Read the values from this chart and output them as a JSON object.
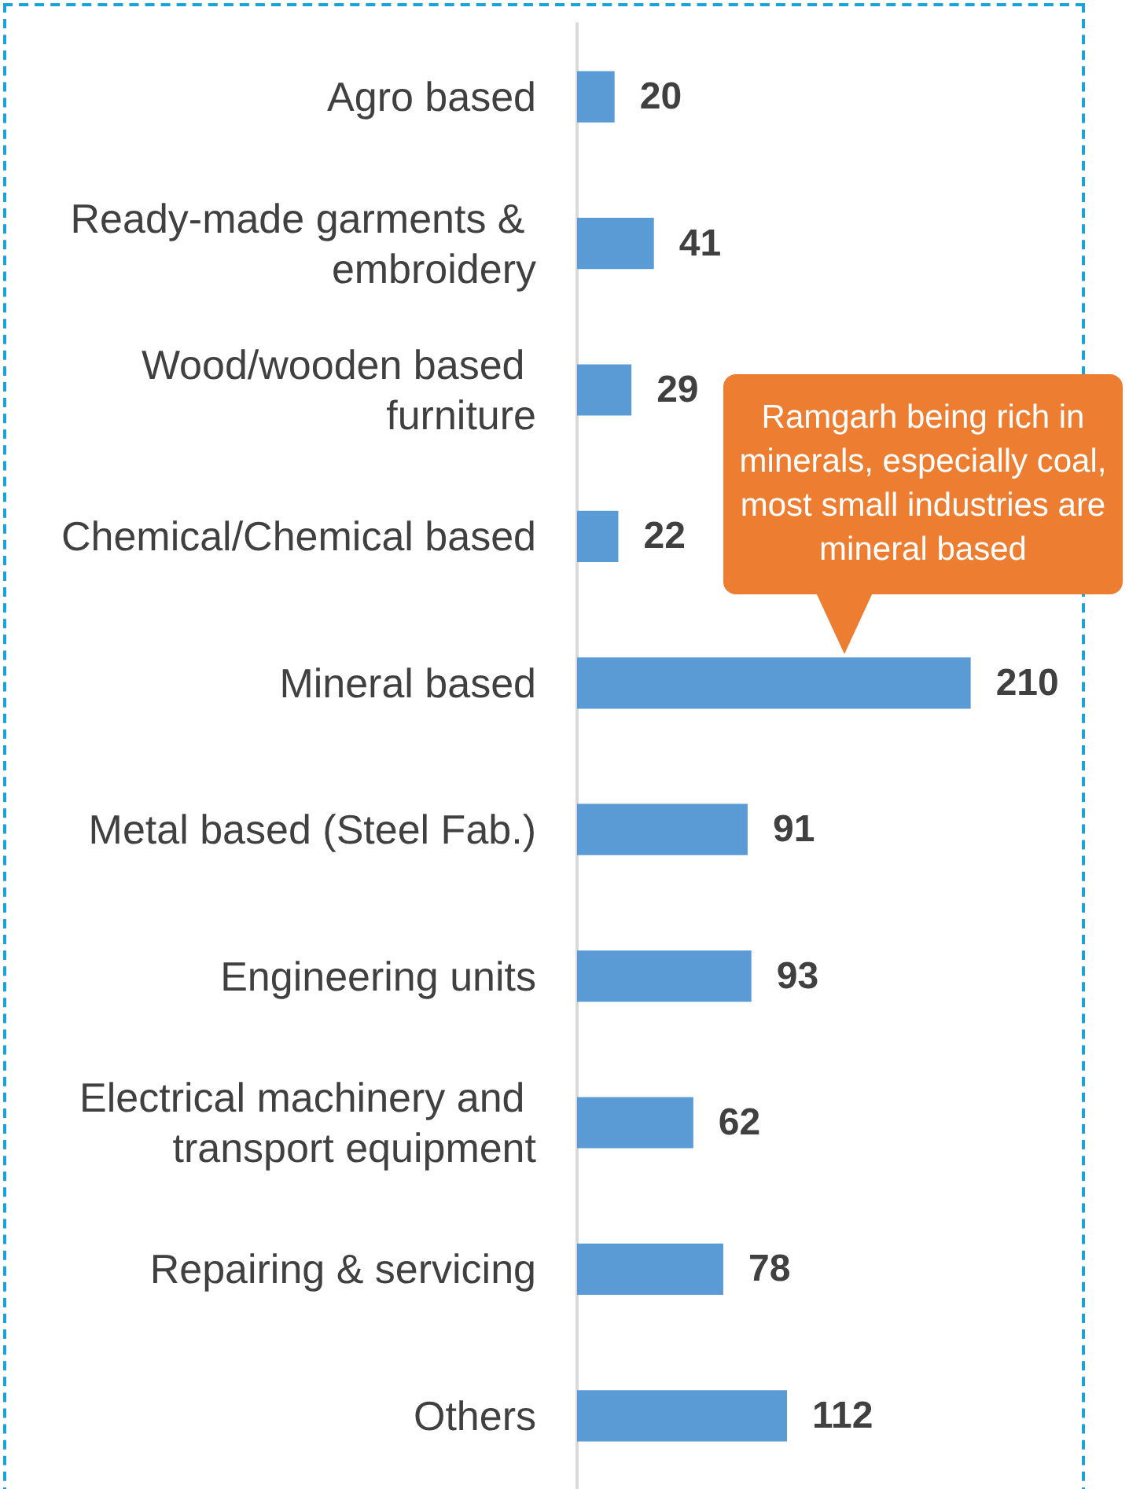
{
  "chart_data": {
    "type": "bar",
    "orientation": "horizontal",
    "categories": [
      "Agro based",
      "Ready-made garments & embroidery",
      "Wood/wooden based furniture",
      "Chemical/Chemical based",
      "Mineral based",
      "Metal based (Steel Fab.)",
      "Engineering units",
      "Electrical machinery and transport equipment",
      "Repairing & servicing",
      "Others"
    ],
    "values": [
      20,
      41,
      29,
      22,
      210,
      91,
      93,
      62,
      78,
      112
    ],
    "color": "#5b9bd5",
    "data_labels": true,
    "tick_labels": "y",
    "annotations": [
      "Ramgarh being rich in minerals, especially coal, most small industries are mineral based"
    ]
  }
}
